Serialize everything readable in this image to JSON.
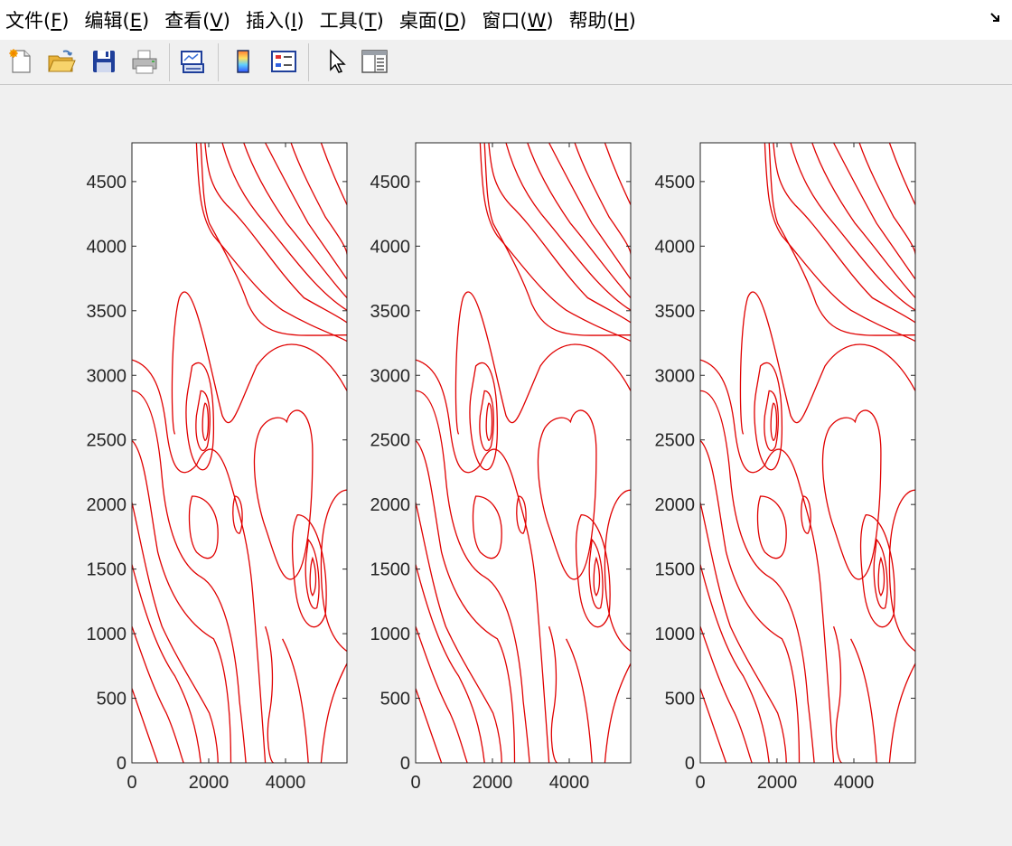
{
  "menu": {
    "items": [
      {
        "id": "file",
        "pre": "文件(",
        "key": "F",
        "post": ")"
      },
      {
        "id": "edit",
        "pre": "编辑(",
        "key": "E",
        "post": ")"
      },
      {
        "id": "view",
        "pre": "查看(",
        "key": "V",
        "post": ")"
      },
      {
        "id": "insert",
        "pre": "插入(",
        "key": "I",
        "post": ")"
      },
      {
        "id": "tools",
        "pre": "工具(",
        "key": "T",
        "post": ")"
      },
      {
        "id": "desktop",
        "pre": "桌面(",
        "key": "D",
        "post": ")"
      },
      {
        "id": "window",
        "pre": "窗口(",
        "key": "W",
        "post": ")"
      },
      {
        "id": "help",
        "pre": "帮助(",
        "key": "H",
        "post": ")"
      }
    ]
  },
  "toolbar": {
    "buttons": [
      "new-figure-icon",
      "open-file-icon",
      "save-icon",
      "print-icon",
      "link-plot-icon",
      "colorbar-icon",
      "legend-icon",
      "pointer-icon",
      "property-inspector-icon"
    ]
  },
  "colors": {
    "contour": "#e00000",
    "background": "#f0f0f0",
    "axes": "#262626"
  },
  "chart_data": [
    {
      "type": "contour",
      "title": "",
      "xlabel": "",
      "ylabel": "",
      "xlim": [
        0,
        5600
      ],
      "ylim": [
        0,
        4800
      ],
      "xticks": [
        0,
        2000,
        4000
      ],
      "yticks": [
        0,
        500,
        1000,
        1500,
        2000,
        2500,
        3000,
        3500,
        4000,
        4500
      ],
      "grid": false
    },
    {
      "type": "contour",
      "title": "",
      "xlabel": "",
      "ylabel": "",
      "xlim": [
        0,
        5600
      ],
      "ylim": [
        0,
        4800
      ],
      "xticks": [
        0,
        2000,
        4000
      ],
      "yticks": [
        0,
        500,
        1000,
        1500,
        2000,
        2500,
        3000,
        3500,
        4000,
        4500
      ],
      "grid": false
    },
    {
      "type": "contour",
      "title": "",
      "xlabel": "",
      "ylabel": "",
      "xlim": [
        0,
        5600
      ],
      "ylim": [
        0,
        4800
      ],
      "xticks": [
        0,
        2000,
        4000
      ],
      "yticks": [
        0,
        500,
        1000,
        1500,
        2000,
        2500,
        3000,
        3500,
        4000,
        4500
      ],
      "grid": false
    }
  ]
}
